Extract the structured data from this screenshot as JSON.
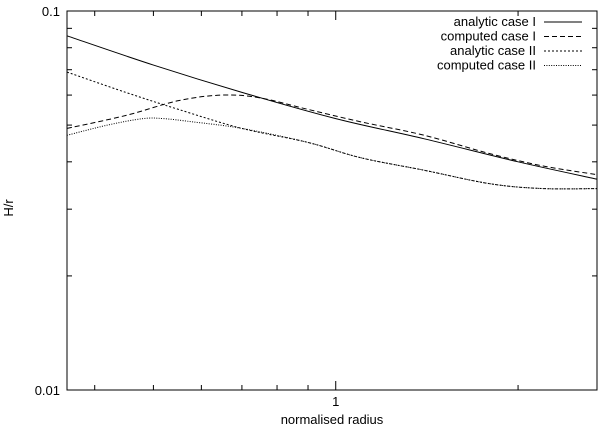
{
  "chart_data": {
    "type": "line",
    "title": "",
    "xlabel": "normalised radius",
    "ylabel": "H/r",
    "xscale": "log",
    "yscale": "log",
    "xlim": [
      0.36,
      2.7
    ],
    "ylim": [
      0.01,
      0.1
    ],
    "x_ticks": [
      {
        "value": 1,
        "label": "1"
      }
    ],
    "x_minor_ticks": [
      0.4,
      0.5,
      0.6,
      0.7,
      0.8,
      0.9,
      2
    ],
    "y_ticks": [
      {
        "value": 0.01,
        "label": "0.01"
      },
      {
        "value": 0.1,
        "label": "0.1"
      }
    ],
    "y_minor_ticks": [
      0.02,
      0.03,
      0.04,
      0.05,
      0.06,
      0.07,
      0.08,
      0.09
    ],
    "grid": false,
    "legend_position": "top-right",
    "series": [
      {
        "name": "analytic case I",
        "dash": "solid",
        "color": "#000000",
        "points": [
          [
            0.36,
            0.086
          ],
          [
            0.5,
            0.072
          ],
          [
            0.7,
            0.061
          ],
          [
            1.0,
            0.052
          ],
          [
            1.4,
            0.046
          ],
          [
            2.0,
            0.04
          ],
          [
            2.7,
            0.036
          ]
        ]
      },
      {
        "name": "computed case I",
        "dash": "dashed",
        "color": "#000000",
        "points": [
          [
            0.36,
            0.049
          ],
          [
            0.45,
            0.053
          ],
          [
            0.55,
            0.058
          ],
          [
            0.65,
            0.06
          ],
          [
            0.75,
            0.059
          ],
          [
            0.9,
            0.055
          ],
          [
            1.1,
            0.051
          ],
          [
            1.4,
            0.047
          ],
          [
            1.8,
            0.042
          ],
          [
            2.2,
            0.039
          ],
          [
            2.7,
            0.037
          ]
        ]
      },
      {
        "name": "analytic case II",
        "dash": "dotted",
        "color": "#000000",
        "points": [
          [
            0.36,
            0.069
          ],
          [
            0.45,
            0.061
          ],
          [
            0.55,
            0.055
          ],
          [
            0.7,
            0.049
          ],
          [
            0.9,
            0.045
          ],
          [
            1.1,
            0.041
          ],
          [
            1.4,
            0.038
          ],
          [
            1.8,
            0.035
          ],
          [
            2.2,
            0.034
          ],
          [
            2.7,
            0.034
          ]
        ]
      },
      {
        "name": "computed case II",
        "dash": "dense-dotted",
        "color": "#000000",
        "points": [
          [
            0.36,
            0.047
          ],
          [
            0.42,
            0.05
          ],
          [
            0.48,
            0.052
          ],
          [
            0.52,
            0.052
          ],
          [
            0.58,
            0.051
          ],
          [
            0.7,
            0.049
          ],
          [
            0.9,
            0.045
          ],
          [
            1.1,
            0.041
          ],
          [
            1.4,
            0.038
          ],
          [
            1.8,
            0.035
          ],
          [
            2.2,
            0.034
          ],
          [
            2.7,
            0.034
          ]
        ]
      }
    ]
  }
}
